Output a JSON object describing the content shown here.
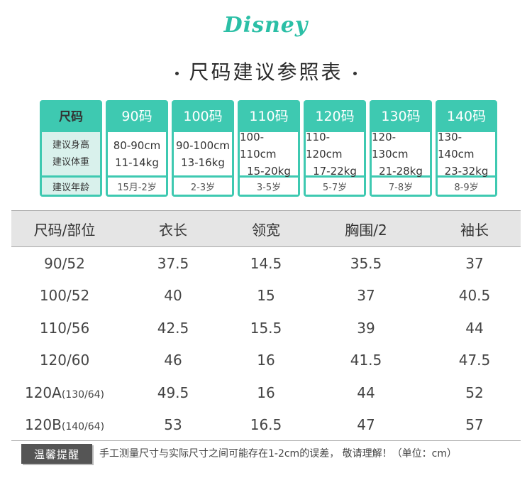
{
  "brand": {
    "logo_text": "Disney",
    "color": "#2bbfa6"
  },
  "title": "尺码建议参照表",
  "size_grid": {
    "accent_color": "#3ec9b1",
    "header_label": "尺码",
    "label_height": "建议身高",
    "label_weight": "建议体重",
    "label_age": "建议年龄",
    "columns": [
      {
        "size": "90码",
        "height": "80-90cm",
        "weight": "11-14kg",
        "age": "15月-2岁"
      },
      {
        "size": "100码",
        "height": "90-100cm",
        "weight": "13-16kg",
        "age": "2-3岁"
      },
      {
        "size": "110码",
        "height": "100-110cm",
        "weight": "15-20kg",
        "age": "3-5岁"
      },
      {
        "size": "120码",
        "height": "110-120cm",
        "weight": "17-22kg",
        "age": "5-7岁"
      },
      {
        "size": "130码",
        "height": "120-130cm",
        "weight": "21-28kg",
        "age": "7-8岁"
      },
      {
        "size": "140码",
        "height": "130-140cm",
        "weight": "23-32kg",
        "age": "8-9岁"
      }
    ]
  },
  "measure_table": {
    "headers": [
      "尺码/部位",
      "衣长",
      "领宽",
      "胸围/2",
      "袖长"
    ],
    "rows": [
      {
        "size": "90/52",
        "size_sub": "",
        "length": "37.5",
        "collar": "14.5",
        "chest": "35.5",
        "sleeve": "37"
      },
      {
        "size": "100/52",
        "size_sub": "",
        "length": "40",
        "collar": "15",
        "chest": "37",
        "sleeve": "40.5"
      },
      {
        "size": "110/56",
        "size_sub": "",
        "length": "42.5",
        "collar": "15.5",
        "chest": "39",
        "sleeve": "44"
      },
      {
        "size": "120/60",
        "size_sub": "",
        "length": "46",
        "collar": "16",
        "chest": "41.5",
        "sleeve": "47.5"
      },
      {
        "size": "120A",
        "size_sub": "(130/64)",
        "length": "49.5",
        "collar": "16",
        "chest": "44",
        "sleeve": "52"
      },
      {
        "size": "120B",
        "size_sub": "(140/64)",
        "length": "53",
        "collar": "16.5",
        "chest": "47",
        "sleeve": "57"
      }
    ]
  },
  "footer": {
    "tip_label": "温馨提醒",
    "note": "手工测量尺寸与实际尺寸之间可能存在1-2cm的误差， 敬请理解！（单位：cm）"
  }
}
